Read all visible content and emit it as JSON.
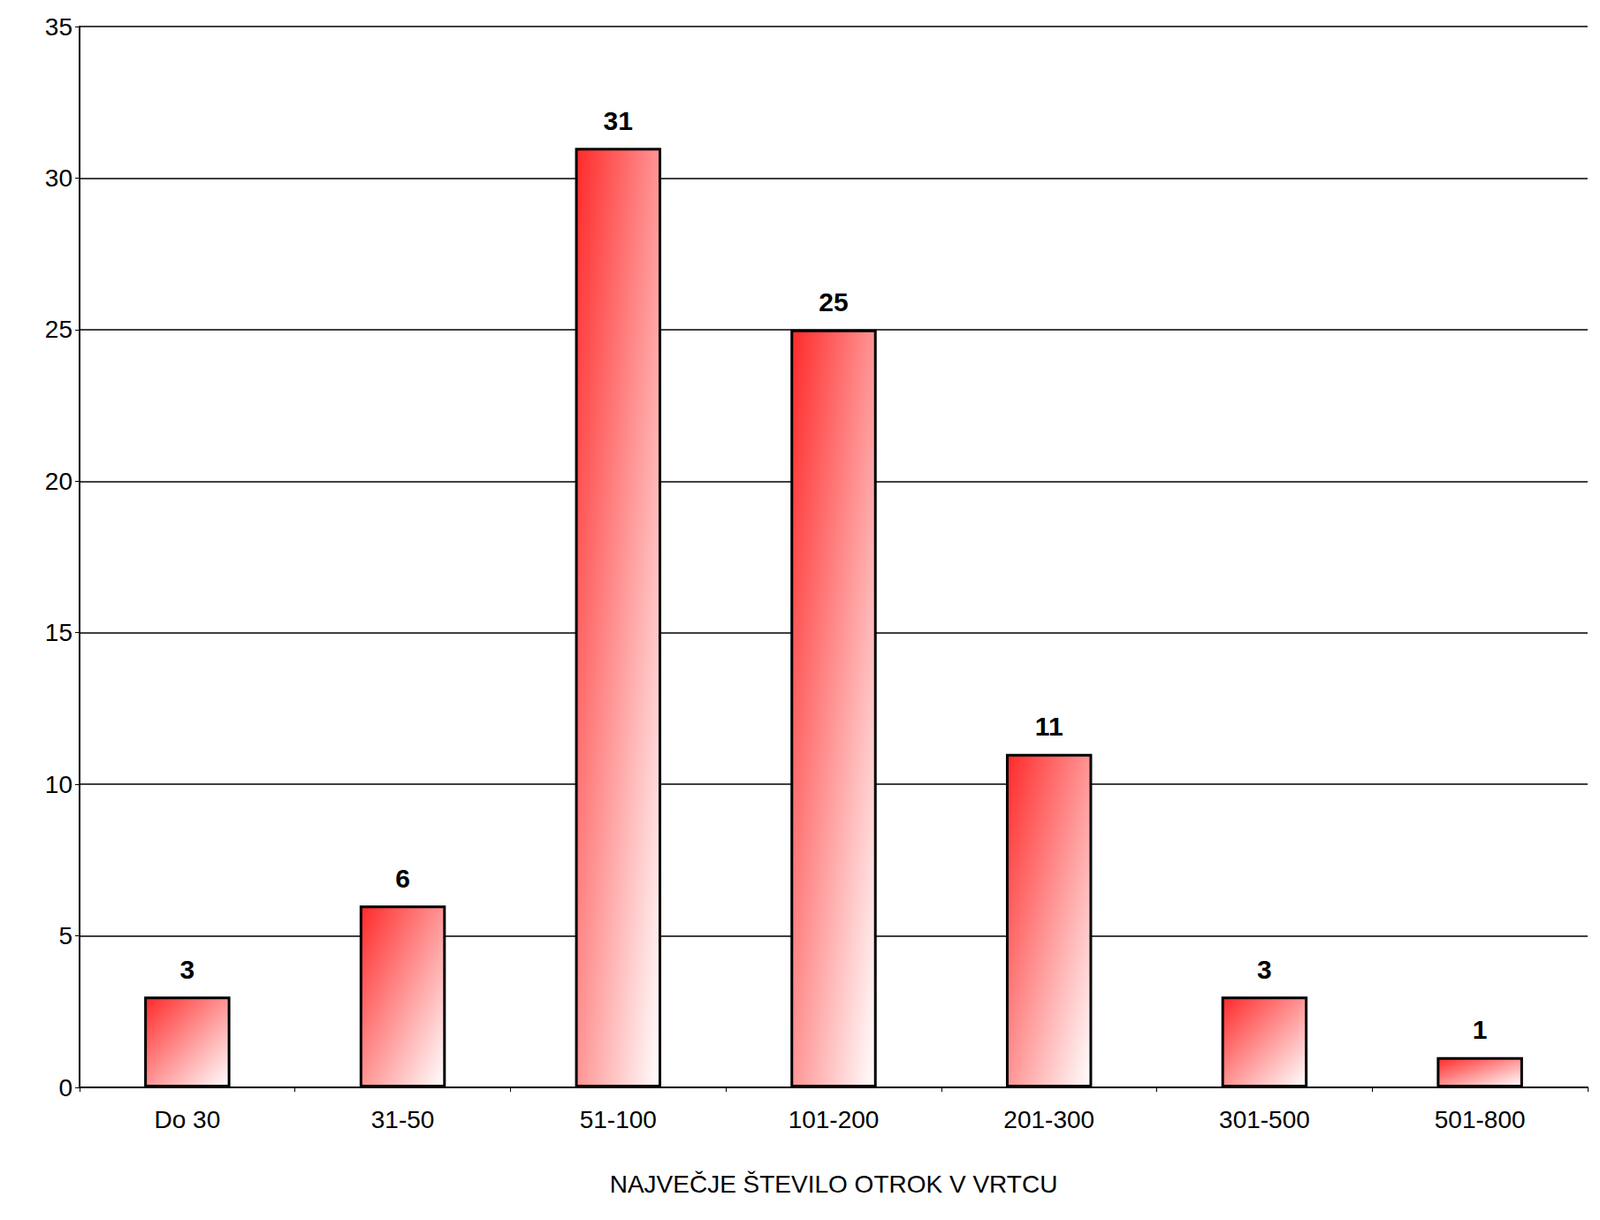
{
  "chart_data": {
    "type": "bar",
    "x_label": "NAJVEČJE ŠTEVILO OTROK V VRTCU",
    "categories": [
      "Do 30",
      "31-50",
      "51-100",
      "101-200",
      "201-300",
      "301-500",
      "501-800"
    ],
    "values": [
      3,
      6,
      31,
      25,
      11,
      3,
      1
    ],
    "color": "#ff2a2a",
    "ylim": [
      0,
      35
    ],
    "yticks": [
      0,
      5,
      10,
      15,
      20,
      25,
      30,
      35
    ],
    "grid": true,
    "data_labels": true
  }
}
